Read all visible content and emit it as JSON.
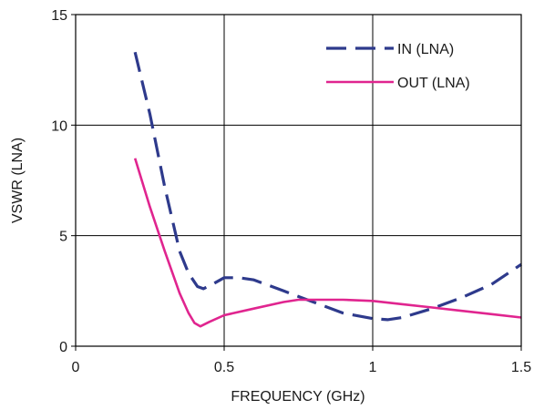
{
  "chart_data": {
    "type": "line",
    "xlabel": "FREQUENCY (GHz)",
    "ylabel": "VSWR (LNA)",
    "xlim": [
      0,
      1.5
    ],
    "ylim": [
      0,
      15
    ],
    "x_ticks": [
      "0",
      "0.5",
      "1",
      "1.5"
    ],
    "y_ticks": [
      "0",
      "5",
      "10",
      "15"
    ],
    "grid": true,
    "legend_position": "top-right",
    "series": [
      {
        "name": "IN (LNA)",
        "color": "#2e3a8c",
        "style": "dashed",
        "x": [
          0.2,
          0.25,
          0.3,
          0.35,
          0.38,
          0.41,
          0.43,
          0.46,
          0.5,
          0.55,
          0.6,
          0.7,
          0.8,
          0.9,
          1.0,
          1.05,
          1.1,
          1.2,
          1.3,
          1.4,
          1.5
        ],
        "y": [
          13.3,
          10.5,
          7.2,
          4.3,
          3.3,
          2.7,
          2.6,
          2.8,
          3.1,
          3.1,
          3.0,
          2.5,
          2.0,
          1.5,
          1.25,
          1.2,
          1.3,
          1.7,
          2.2,
          2.8,
          3.7
        ]
      },
      {
        "name": "OUT (LNA)",
        "color": "#e0258f",
        "style": "solid",
        "x": [
          0.2,
          0.25,
          0.3,
          0.35,
          0.38,
          0.4,
          0.42,
          0.45,
          0.5,
          0.6,
          0.7,
          0.75,
          0.8,
          0.9,
          1.0,
          1.1,
          1.2,
          1.3,
          1.4,
          1.5
        ],
        "y": [
          8.5,
          6.3,
          4.3,
          2.4,
          1.5,
          1.05,
          0.9,
          1.1,
          1.4,
          1.7,
          2.0,
          2.1,
          2.1,
          2.1,
          2.05,
          1.9,
          1.75,
          1.6,
          1.45,
          1.3
        ]
      }
    ]
  }
}
